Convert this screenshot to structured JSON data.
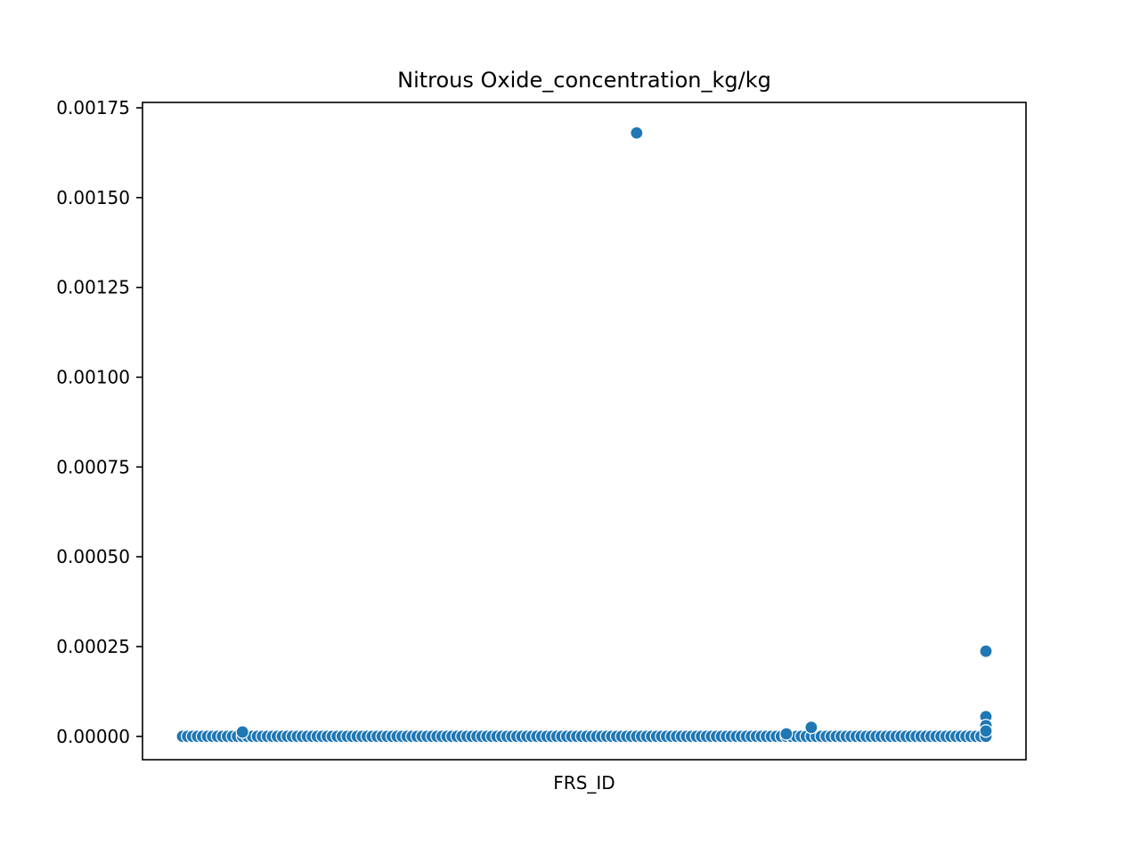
{
  "chart_data": {
    "type": "scatter",
    "title": "Nitrous Oxide_concentration_kg/kg",
    "xlabel": "FRS_ID",
    "ylabel": "",
    "ylim": [
      -6.5e-05,
      0.001765
    ],
    "x_categorical": true,
    "x_tick_labels_shown": false,
    "y_ticks": [
      0.0,
      0.00025,
      0.0005,
      0.00075,
      0.001,
      0.00125,
      0.0015,
      0.00175
    ],
    "y_tick_labels": [
      "0.00000",
      "0.00025",
      "0.00050",
      "0.00075",
      "0.00100",
      "0.00125",
      "0.00150",
      "0.00175"
    ],
    "grid": false,
    "legend": "none",
    "marker_color": "#1f77b4",
    "series": [
      {
        "name": "",
        "count": 162,
        "baseline_value": 0.0,
        "notable_points": [
          {
            "index": 12,
            "value": 1.2e-05
          },
          {
            "index": 91,
            "value": 0.00168
          },
          {
            "index": 121,
            "value": 7e-06
          },
          {
            "index": 126,
            "value": 2.5e-05
          },
          {
            "index": 161,
            "value": 0.000237
          },
          {
            "index": 161,
            "value": 5.5e-05
          },
          {
            "index": 161,
            "value": 3e-05
          },
          {
            "index": 161,
            "value": 1.5e-05
          }
        ]
      }
    ]
  }
}
